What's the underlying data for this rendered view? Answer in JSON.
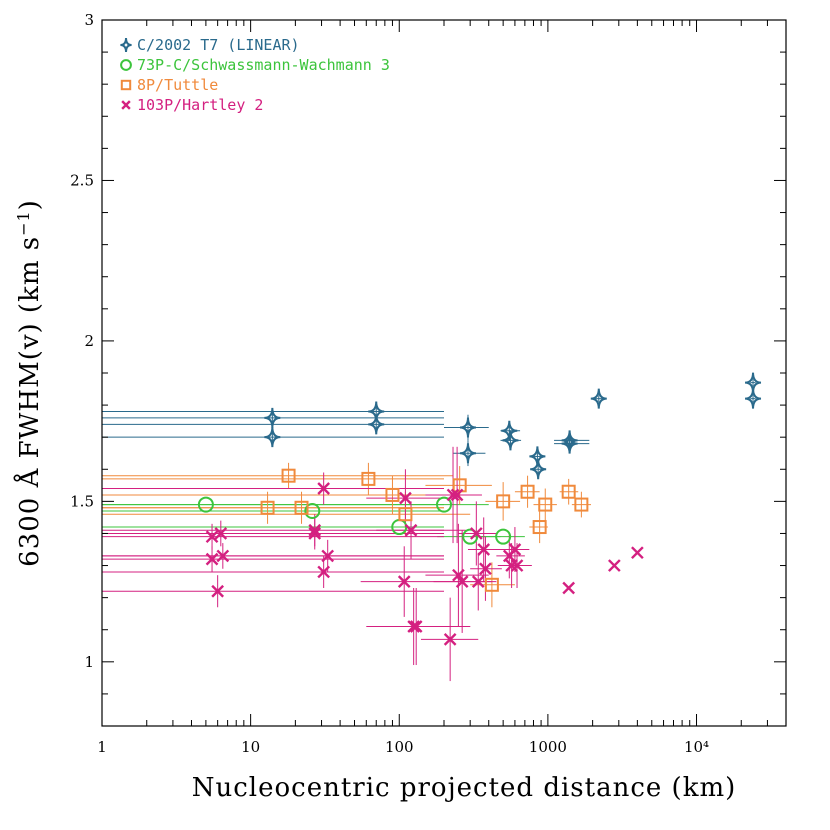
{
  "chart_data": {
    "type": "scatter",
    "xlabel": "Nucleocentric projected distance (km)",
    "ylabel": "6300 Å FWHM(v) (km s",
    "ylabel_sup": "−1",
    "ylabel_end": ")",
    "x_scale": "log",
    "xlim": [
      1,
      40000
    ],
    "ylim": [
      0.8,
      3.0
    ],
    "x_ticks": [
      1,
      10,
      100,
      1000,
      10000
    ],
    "x_tick_labels": [
      "1",
      "10",
      "100",
      "1000",
      "10⁴"
    ],
    "y_ticks": [
      1,
      1.5,
      2,
      2.5,
      3
    ],
    "y_tick_labels": [
      "1",
      "1.5",
      "2",
      "2.5",
      "3"
    ],
    "legend_position": "top-left",
    "series": [
      {
        "name": "C/2002 T7 (LINEAR)",
        "marker": "star",
        "color": "#2a6a8c",
        "points": [
          [
            14,
            1.76,
            1,
            200,
            0.03
          ],
          [
            14,
            1.7,
            1,
            200,
            0.03
          ],
          [
            70,
            1.78,
            1,
            200,
            0.03
          ],
          [
            70,
            1.74,
            1,
            200,
            0.03
          ],
          [
            290,
            1.73,
            200,
            400,
            0.04
          ],
          [
            290,
            1.65,
            230,
            380,
            0.04
          ],
          [
            550,
            1.72,
            480,
            650,
            0.03
          ],
          [
            560,
            1.69,
            480,
            660,
            0.03
          ],
          [
            850,
            1.64,
            780,
            950,
            0.03
          ],
          [
            860,
            1.6,
            780,
            950,
            0.03
          ],
          [
            1400,
            1.69,
            1100,
            1900,
            0.02
          ],
          [
            1400,
            1.68,
            1100,
            1900,
            0.02
          ],
          [
            2200,
            1.82,
            2000,
            2400,
            0.01
          ],
          [
            24000,
            1.87,
            23000,
            25000,
            0.01
          ],
          [
            24000,
            1.82,
            23000,
            25000,
            0.01
          ]
        ]
      },
      {
        "name": "73P-C/Schwassmann-Wachmann 3",
        "marker": "circle",
        "color": "#3cc43c",
        "points": [
          [
            5,
            1.49,
            1,
            200,
            0
          ],
          [
            26,
            1.47,
            1,
            200,
            0
          ],
          [
            100,
            1.42,
            1,
            200,
            0
          ],
          [
            200,
            1.49,
            1,
            400,
            0
          ],
          [
            300,
            1.39,
            180,
            480,
            0
          ],
          [
            500,
            1.39,
            330,
            700,
            0
          ]
        ]
      },
      {
        "name": "8P/Tuttle",
        "marker": "square",
        "color": "#f08a3c",
        "points": [
          [
            18,
            1.58,
            1,
            230,
            0.04
          ],
          [
            13,
            1.48,
            1,
            200,
            0.05
          ],
          [
            22,
            1.48,
            1,
            200,
            0.05
          ],
          [
            62,
            1.57,
            1,
            200,
            0.05
          ],
          [
            90,
            1.52,
            1,
            200,
            0.06
          ],
          [
            110,
            1.46,
            1,
            300,
            0.07
          ],
          [
            255,
            1.55,
            150,
            420,
            0.06
          ],
          [
            500,
            1.5,
            380,
            650,
            0.06
          ],
          [
            730,
            1.53,
            600,
            880,
            0.05
          ],
          [
            880,
            1.42,
            750,
            1000,
            0.05
          ],
          [
            960,
            1.49,
            800,
            1150,
            0.05
          ],
          [
            1380,
            1.53,
            1200,
            1600,
            0.04
          ],
          [
            1680,
            1.49,
            1450,
            1950,
            0.04
          ],
          [
            420,
            1.24,
            300,
            600,
            0.07
          ]
        ]
      },
      {
        "name": "103P/Hartley 2",
        "marker": "x",
        "color": "#d42080",
        "points": [
          [
            5.5,
            1.39,
            1,
            200,
            0.04
          ],
          [
            6.3,
            1.4,
            1,
            200,
            0.04
          ],
          [
            5.5,
            1.32,
            1,
            200,
            0.04
          ],
          [
            6.5,
            1.33,
            1,
            200,
            0.04
          ],
          [
            6,
            1.22,
            1,
            200,
            0.05
          ],
          [
            27,
            1.41,
            1,
            200,
            0.05
          ],
          [
            27,
            1.4,
            1,
            200,
            0.05
          ],
          [
            31,
            1.54,
            1,
            200,
            0.05
          ],
          [
            33,
            1.33,
            1,
            200,
            0.05
          ],
          [
            31,
            1.28,
            1,
            200,
            0.05
          ],
          [
            110,
            1.51,
            60,
            250,
            0.09
          ],
          [
            120,
            1.41,
            70,
            280,
            0.09
          ],
          [
            108,
            1.25,
            55,
            250,
            0.11
          ],
          [
            125,
            1.11,
            60,
            300,
            0.12
          ],
          [
            130,
            1.11,
            70,
            300,
            0.12
          ],
          [
            230,
            1.52,
            150,
            350,
            0.15
          ],
          [
            245,
            1.52,
            160,
            360,
            0.15
          ],
          [
            250,
            1.27,
            150,
            400,
            0.16
          ],
          [
            265,
            1.25,
            170,
            420,
            0.16
          ],
          [
            220,
            1.07,
            140,
            340,
            0.13
          ],
          [
            330,
            1.4,
            250,
            450,
            0.1
          ],
          [
            340,
            1.25,
            250,
            450,
            0.09
          ],
          [
            370,
            1.35,
            290,
            480,
            0.1
          ],
          [
            380,
            1.29,
            300,
            490,
            0.1
          ],
          [
            550,
            1.33,
            450,
            700,
            0.07
          ],
          [
            600,
            1.35,
            480,
            750,
            0.07
          ],
          [
            570,
            1.3,
            460,
            720,
            0.07
          ],
          [
            620,
            1.3,
            500,
            780,
            0.07
          ],
          [
            1380,
            1.23,
            1380,
            1380,
            0
          ],
          [
            2800,
            1.3,
            2800,
            2800,
            0
          ],
          [
            4000,
            1.34,
            4000,
            4000,
            0
          ]
        ]
      }
    ]
  }
}
